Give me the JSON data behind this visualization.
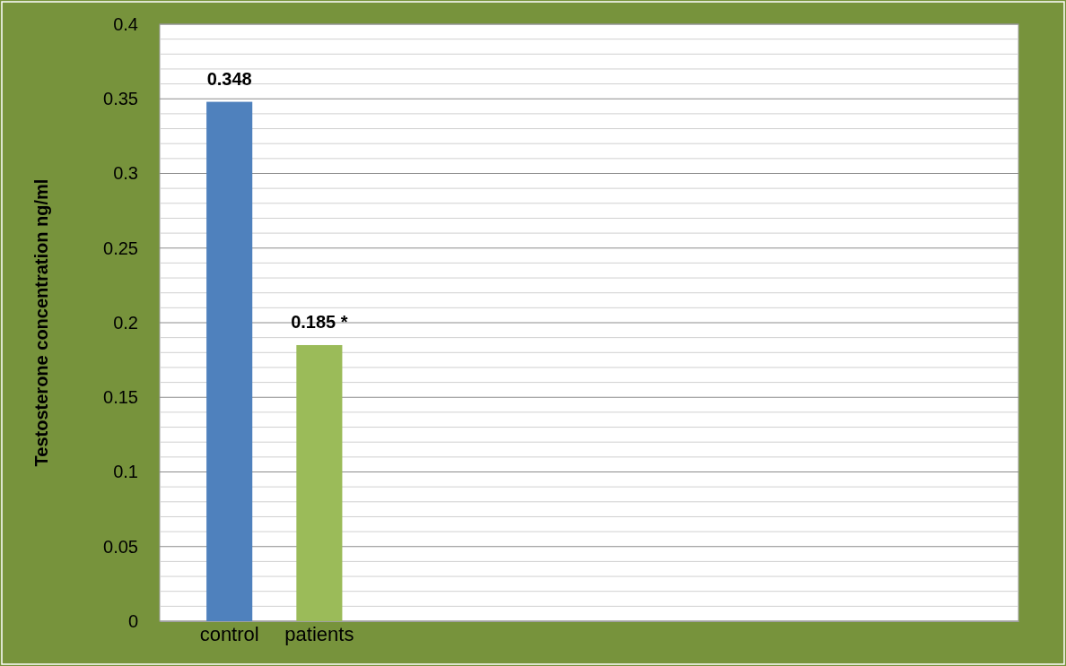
{
  "chart_data": {
    "type": "bar",
    "ylabel": "Testosterone concentration ng/ml",
    "categories": [
      "control",
      "patients",
      null,
      null,
      null,
      null,
      null,
      null,
      null
    ],
    "values": [
      0.348,
      0.185,
      null,
      null,
      null,
      null,
      null,
      null,
      null
    ],
    "colors": [
      "#4f81bd",
      "#9bbb59",
      null,
      null,
      null,
      null,
      null,
      null,
      null
    ],
    "value_labels": [
      "0.348",
      "0.185 *",
      null,
      null,
      null,
      null,
      null,
      null,
      null
    ],
    "ylim": [
      0,
      0.4
    ],
    "yticks": [
      0,
      {
        "value": 0.01,
        "label": null
      },
      {
        "value": 0.02,
        "label": null
      },
      {
        "value": 0.03,
        "label": null
      },
      {
        "value": 0.04,
        "label": null
      },
      0.05,
      {
        "value": 0.06,
        "label": null
      },
      {
        "value": 0.07,
        "label": null
      },
      {
        "value": 0.08,
        "label": null
      },
      {
        "value": 0.09,
        "label": null
      },
      0.1,
      {
        "value": 0.11,
        "label": null
      },
      {
        "value": 0.12,
        "label": null
      },
      {
        "value": 0.13,
        "label": null
      },
      {
        "value": 0.14,
        "label": null
      },
      0.15,
      {
        "value": 0.16,
        "label": null
      },
      {
        "value": 0.17,
        "label": null
      },
      {
        "value": 0.18,
        "label": null
      },
      {
        "value": 0.19,
        "label": null
      },
      0.2,
      {
        "value": 0.21,
        "label": null
      },
      {
        "value": 0.22,
        "label": null
      },
      {
        "value": 0.23,
        "label": null
      },
      {
        "value": 0.24,
        "label": null
      },
      0.25,
      {
        "value": 0.26,
        "label": null
      },
      {
        "value": 0.27,
        "label": null
      },
      {
        "value": 0.28,
        "label": null
      },
      {
        "value": 0.29,
        "label": null
      },
      0.3,
      {
        "value": 0.31,
        "label": null
      },
      {
        "value": 0.32,
        "label": null
      },
      {
        "value": 0.33,
        "label": null
      },
      {
        "value": 0.34,
        "label": null
      },
      0.35,
      {
        "value": 0.36,
        "label": null
      },
      {
        "value": 0.37,
        "label": null
      },
      {
        "value": 0.38,
        "label": null
      },
      {
        "value": 0.39,
        "label": null
      },
      0.4
    ],
    "grid": true
  }
}
